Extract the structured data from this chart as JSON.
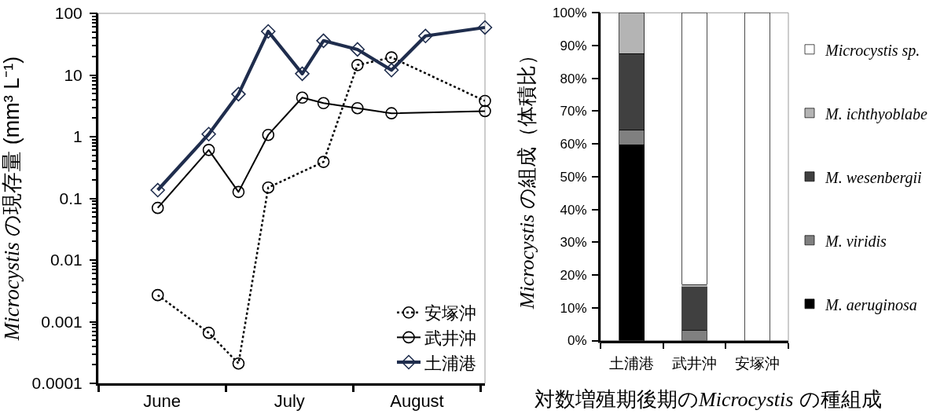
{
  "chart_data": [
    {
      "type": "line",
      "ylabel": "Microcystis の現存量 (mm³ L⁻¹)",
      "log": true,
      "legend": "bottom right",
      "xlim": [
        "--06-01",
        "--08-31"
      ],
      "xticks": [
        {
          "value": "--06-01",
          "label": null
        },
        {
          "value": "--06-16",
          "label": "June"
        },
        {
          "value": "--07-01",
          "label": null
        },
        {
          "value": "--07-16",
          "label": "July"
        },
        {
          "value": "--07-31",
          "label": null
        },
        {
          "value": "--08-15",
          "label": "August"
        },
        {
          "value": "--08-30",
          "label": null
        }
      ],
      "ylim": [
        0.0001,
        100
      ],
      "yticks": [
        0.0001,
        0.001,
        0.01,
        0.1,
        1,
        10,
        100,
        {
          "value": 0.0002,
          "label": null
        },
        {
          "value": 0.0003,
          "label": null
        },
        {
          "value": 0.0004,
          "label": null
        },
        {
          "value": 0.0005,
          "label": null
        },
        {
          "value": 0.0006,
          "label": null
        },
        {
          "value": 0.0007,
          "label": null
        },
        {
          "value": 0.0008,
          "label": null
        },
        {
          "value": 0.0009,
          "label": null
        },
        {
          "value": 0.002,
          "label": null
        },
        {
          "value": 0.003,
          "label": null
        },
        {
          "value": 0.004,
          "label": null
        },
        {
          "value": 0.005,
          "label": null
        },
        {
          "value": 0.006,
          "label": null
        },
        {
          "value": 0.007,
          "label": null
        },
        {
          "value": 0.008,
          "label": null
        },
        {
          "value": 0.009,
          "label": null
        },
        {
          "value": 0.02,
          "label": null
        },
        {
          "value": 0.03,
          "label": null
        },
        {
          "value": 0.04,
          "label": null
        },
        {
          "value": 0.05,
          "label": null
        },
        {
          "value": 0.06,
          "label": null
        },
        {
          "value": 0.07,
          "label": null
        },
        {
          "value": 0.08,
          "label": null
        },
        {
          "value": 0.09,
          "label": null
        },
        {
          "value": 0.2,
          "label": null
        },
        {
          "value": 0.3,
          "label": null
        },
        {
          "value": 0.4,
          "label": null
        },
        {
          "value": 0.5,
          "label": null
        },
        {
          "value": 0.6,
          "label": null
        },
        {
          "value": 0.7,
          "label": null
        },
        {
          "value": 0.8,
          "label": null
        },
        {
          "value": 0.9,
          "label": null
        },
        {
          "value": 2,
          "label": null
        },
        {
          "value": 3,
          "label": null
        },
        {
          "value": 4,
          "label": null
        },
        {
          "value": 5,
          "label": null
        },
        {
          "value": 6,
          "label": null
        },
        {
          "value": 7,
          "label": null
        },
        {
          "value": 8,
          "label": null
        },
        {
          "value": 9,
          "label": null
        },
        {
          "value": 20,
          "label": null
        },
        {
          "value": 30,
          "label": null
        },
        {
          "value": 40,
          "label": null
        },
        {
          "value": 50,
          "label": null
        },
        {
          "value": 60,
          "label": null
        },
        {
          "value": 70,
          "label": null
        },
        {
          "value": 80,
          "label": null
        },
        {
          "value": 90,
          "label": null
        }
      ],
      "series": [
        {
          "name": "安塚沖",
          "color": "#000000",
          "line_style": "dotted",
          "marker": "circle",
          "x": [
            "--06-15",
            "--06-27",
            "--07-04",
            "--07-11",
            "--07-24",
            "--08-01",
            "--08-09",
            "--08-31"
          ],
          "values": [
            0.0027,
            0.00066,
            0.00021,
            0.15,
            0.39,
            14.5,
            19.3,
            3.8
          ]
        },
        {
          "name": "武井沖",
          "color": "#000000",
          "line_style": "solid",
          "marker": "circle",
          "x": [
            "--06-15",
            "--06-27",
            "--07-04",
            "--07-11",
            "--07-19",
            "--07-24",
            "--08-01",
            "--08-09",
            "--08-31"
          ],
          "values": [
            0.07,
            0.61,
            0.127,
            1.07,
            4.3,
            3.5,
            2.9,
            2.4,
            2.6
          ]
        },
        {
          "name": "土浦港",
          "color": "#1f2d4d",
          "line_style": "solid",
          "marker": "diamond",
          "x": [
            "--06-15",
            "--06-27",
            "--07-04",
            "--07-11",
            "--07-19",
            "--07-24",
            "--08-01",
            "--08-09",
            "--08-17",
            "--08-31"
          ],
          "values": [
            0.136,
            1.1,
            4.9,
            51,
            10.5,
            36,
            26,
            12,
            43,
            59
          ]
        }
      ]
    },
    {
      "type": "bar",
      "stacked": true,
      "title": "対数増殖期後期のMicrocystis の種組成",
      "ylabel": "Microcystis の組成（体積比）",
      "legend": "right",
      "categories": [
        "土浦港",
        "武井沖",
        "安塚沖"
      ],
      "ylim": [
        0,
        100
      ],
      "yticks": [
        {
          "value": 0,
          "label": "0%"
        },
        {
          "value": 10,
          "label": "10%"
        },
        {
          "value": 20,
          "label": "20%"
        },
        {
          "value": 30,
          "label": "30%"
        },
        {
          "value": 40,
          "label": "40%"
        },
        {
          "value": 50,
          "label": "50%"
        },
        {
          "value": 60,
          "label": "60%"
        },
        {
          "value": 70,
          "label": "70%"
        },
        {
          "value": 80,
          "label": "80%"
        },
        {
          "value": 90,
          "label": "90%"
        },
        {
          "value": 100,
          "label": "100%"
        }
      ],
      "series": [
        {
          "name": "M. aeruginosa",
          "color": "#000000",
          "values": [
            59.8,
            0,
            0
          ]
        },
        {
          "name": "M. viridis",
          "color": "#808080",
          "values": [
            4.5,
            3.1,
            0
          ]
        },
        {
          "name": "M. wesenbergii",
          "color": "#404040",
          "values": [
            23.3,
            13.5,
            0
          ]
        },
        {
          "name": "M. ichthyoblabe",
          "color": "#b4b4b4",
          "values": [
            12.4,
            0.5,
            0
          ]
        },
        {
          "name": "Microcystis sp.",
          "color": "#ffffff",
          "values": [
            0,
            82.9,
            100
          ]
        }
      ]
    }
  ]
}
